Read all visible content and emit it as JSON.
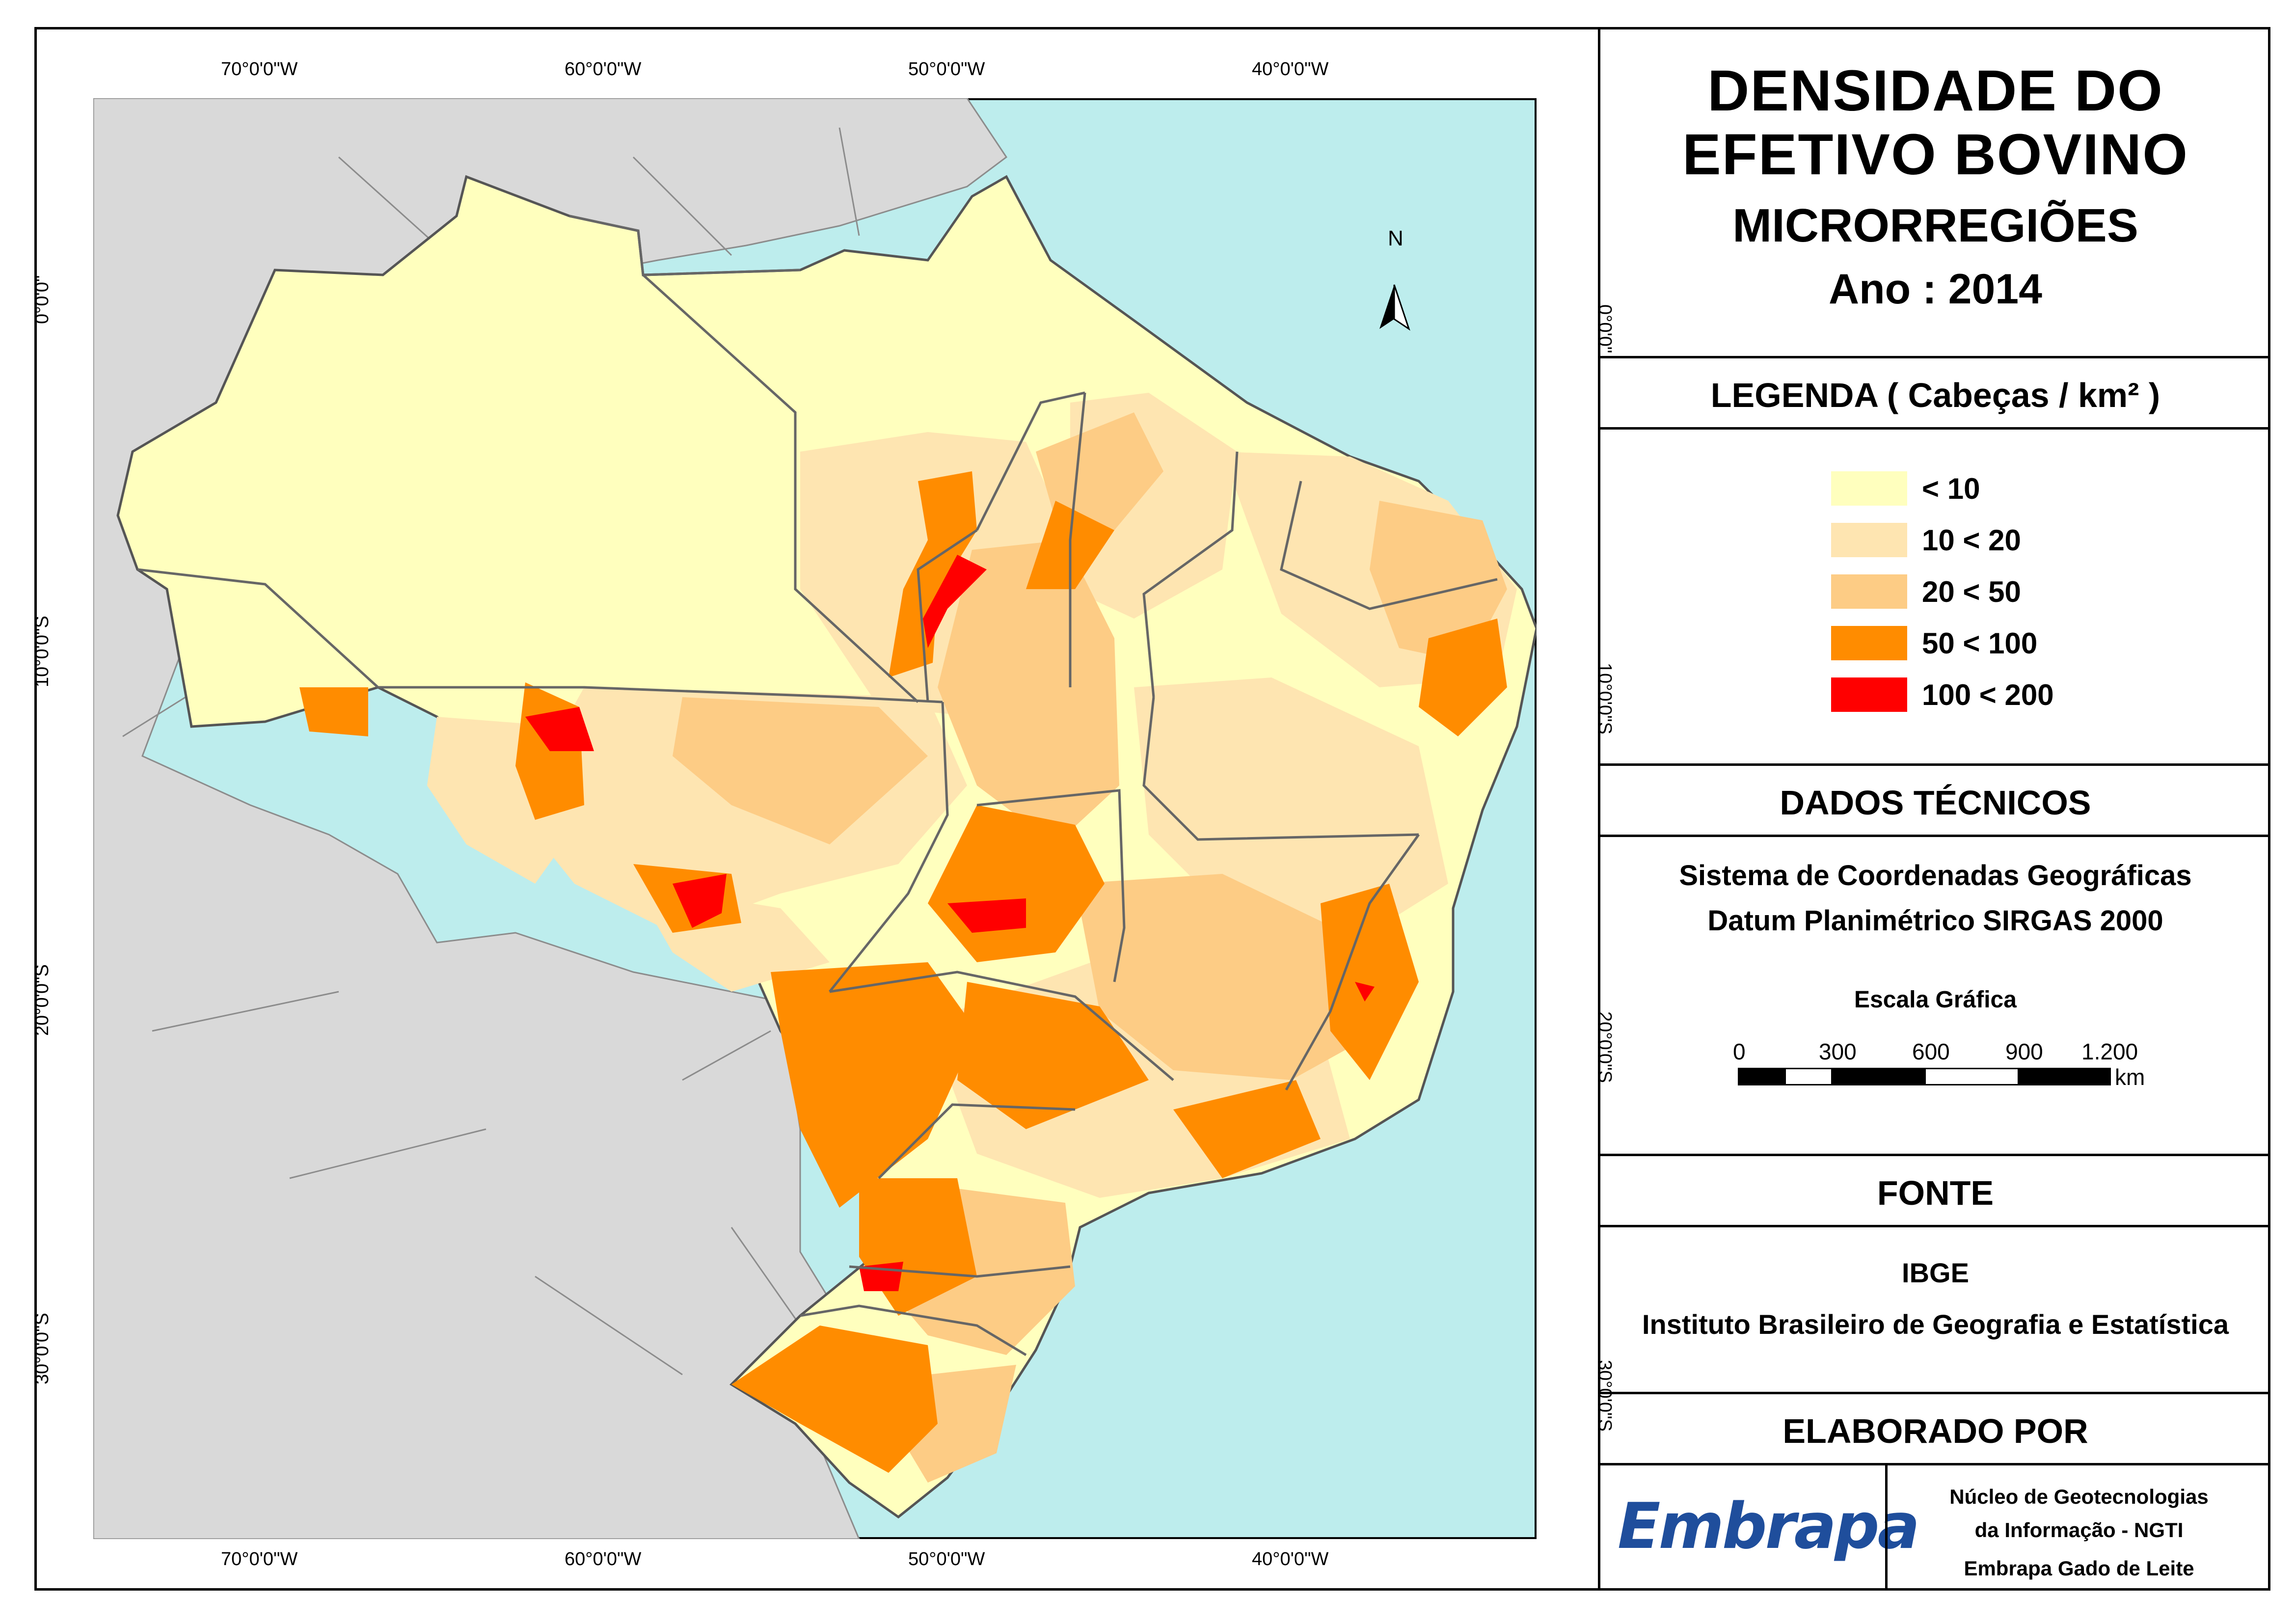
{
  "map": {
    "coordinates": {
      "top": [
        "70°0'0\"W",
        "60°0'0\"W",
        "50°0'0\"W",
        "40°0'0\"W"
      ],
      "bottom": [
        "70°0'0\"W",
        "60°0'0\"W",
        "50°0'0\"W",
        "40°0'0\"W"
      ],
      "left": [
        "0°0'0\"",
        "10°0'0\"S",
        "20°0'0\"S",
        "30°0'0\"S"
      ],
      "right": [
        "0°0'0\"",
        "10°0'0\"S",
        "20°0'0\"S",
        "30°0'0\"S"
      ]
    },
    "north_label": "N",
    "colors": {
      "ocean": "#bdeded",
      "neighbors": "#d9d9d9",
      "class1": "#ffffbe",
      "class2": "#fee5b1",
      "class3": "#fdcc85",
      "class4": "#ff8c00",
      "class5": "#ff0000"
    }
  },
  "panel": {
    "title_line1": "DENSIDADE DO",
    "title_line2": "EFETIVO BOVINO",
    "subtitle": "MICRORREGIÕES",
    "year": "Ano : 2014",
    "legend_header": "LEGENDA ( Cabeças / km² )",
    "legend": [
      {
        "label": "< 10",
        "color": "#ffffbe"
      },
      {
        "label": "10 < 20",
        "color": "#fee5b1"
      },
      {
        "label": "20 < 50",
        "color": "#fdcc85"
      },
      {
        "label": "50 < 100",
        "color": "#ff8c00"
      },
      {
        "label": "100 < 200",
        "color": "#ff0000"
      }
    ],
    "tech_header": "DADOS TÉCNICOS",
    "tech_line1": "Sistema de Coordenadas Geográficas",
    "tech_line2": "Datum Planimétrico SIRGAS 2000",
    "scale_title": "Escala Gráfica",
    "scale_ticks": [
      "0",
      "300",
      "600",
      "900",
      "1.200"
    ],
    "scale_unit": "km",
    "source_header": "FONTE",
    "source_line1": "IBGE",
    "source_line2": "Instituto Brasileiro de Geografia e Estatística",
    "made_by_header": "ELABORADO POR",
    "logo_text": "Embrapa",
    "credit_line1": "Núcleo de Geotecnologias",
    "credit_line2": "da Informação - NGTI",
    "credit_line3": "Embrapa Gado de Leite"
  }
}
